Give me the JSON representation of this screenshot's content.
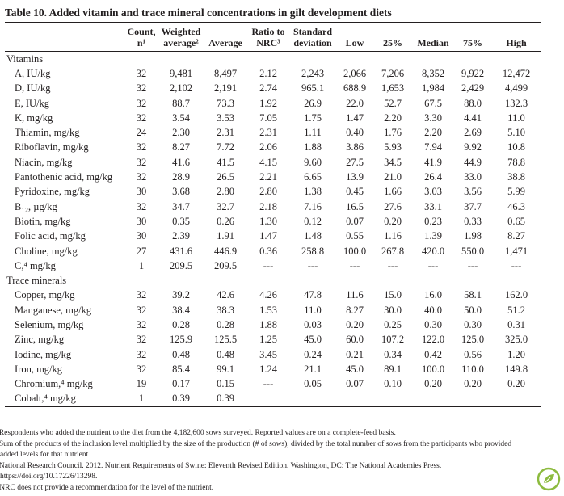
{
  "title": "Table 10. Added vitamin and trace mineral concentrations in gilt development diets",
  "table": {
    "header": [
      [
        ""
      ],
      [
        "Count,",
        "n¹"
      ],
      [
        "Weighted",
        "average²"
      ],
      [
        "Average"
      ],
      [
        "Ratio to",
        "NRC³"
      ],
      [
        "Standard",
        "deviation"
      ],
      [
        "Low"
      ],
      [
        "25%"
      ],
      [
        "Median"
      ],
      [
        "75%"
      ],
      [
        "High"
      ]
    ],
    "sections": [
      {
        "title": "Vitamins",
        "rows": [
          [
            "A, IU/kg",
            "32",
            "9,481",
            "8,497",
            "2.12",
            "2,243",
            "2,066",
            "7,206",
            "8,352",
            "9,922",
            "12,472"
          ],
          [
            "D, IU/kg",
            "32",
            "2,102",
            "2,191",
            "2.74",
            "965.1",
            "688.9",
            "1,653",
            "1,984",
            "2,429",
            "4,499"
          ],
          [
            "E, IU/kg",
            "32",
            "88.7",
            "73.3",
            "1.92",
            "26.9",
            "22.0",
            "52.7",
            "67.5",
            "88.0",
            "132.3"
          ],
          [
            "K, mg/kg",
            "32",
            "3.54",
            "3.53",
            "7.05",
            "1.75",
            "1.47",
            "2.20",
            "3.30",
            "4.41",
            "11.0"
          ],
          [
            "Thiamin, mg/kg",
            "24",
            "2.30",
            "2.31",
            "2.31",
            "1.11",
            "0.40",
            "1.76",
            "2.20",
            "2.69",
            "5.10"
          ],
          [
            "Riboflavin, mg/kg",
            "32",
            "8.27",
            "7.72",
            "2.06",
            "1.88",
            "3.86",
            "5.93",
            "7.94",
            "9.92",
            "10.8"
          ],
          [
            "Niacin, mg/kg",
            "32",
            "41.6",
            "41.5",
            "4.15",
            "9.60",
            "27.5",
            "34.5",
            "41.9",
            "44.9",
            "78.8"
          ],
          [
            "Pantothenic acid, mg/kg",
            "32",
            "28.9",
            "26.5",
            "2.21",
            "6.65",
            "13.9",
            "21.0",
            "26.4",
            "33.0",
            "38.8"
          ],
          [
            "Pyridoxine, mg/kg",
            "30",
            "3.68",
            "2.80",
            "2.80",
            "1.38",
            "0.45",
            "1.66",
            "3.03",
            "3.56",
            "5.99"
          ],
          [
            "B₁₂, µg/kg",
            "32",
            "34.7",
            "32.7",
            "2.18",
            "7.16",
            "16.5",
            "27.6",
            "33.1",
            "37.7",
            "46.3"
          ],
          [
            "Biotin, mg/kg",
            "30",
            "0.35",
            "0.26",
            "1.30",
            "0.12",
            "0.07",
            "0.20",
            "0.23",
            "0.33",
            "0.65"
          ],
          [
            "Folic acid, mg/kg",
            "30",
            "2.39",
            "1.91",
            "1.47",
            "1.48",
            "0.55",
            "1.16",
            "1.39",
            "1.98",
            "8.27"
          ],
          [
            "Choline, mg/kg",
            "27",
            "431.6",
            "446.9",
            "0.36",
            "258.8",
            "100.0",
            "267.8",
            "420.0",
            "550.0",
            "1,471"
          ],
          [
            "C,⁴ mg/kg",
            "1",
            "209.5",
            "209.5",
            "---",
            "---",
            "---",
            "---",
            "---",
            "---",
            "---"
          ]
        ]
      },
      {
        "title": "Trace minerals",
        "rows": [
          [
            "Copper, mg/kg",
            "32",
            "39.2",
            "42.6",
            "4.26",
            "47.8",
            "11.6",
            "15.0",
            "16.0",
            "58.1",
            "162.0"
          ],
          [
            "Manganese, mg/kg",
            "32",
            "38.4",
            "38.3",
            "1.53",
            "11.0",
            "8.27",
            "30.0",
            "40.0",
            "50.0",
            "51.2"
          ],
          [
            "Selenium, mg/kg",
            "32",
            "0.28",
            "0.28",
            "1.88",
            "0.03",
            "0.20",
            "0.25",
            "0.30",
            "0.30",
            "0.31"
          ],
          [
            "Zinc, mg/kg",
            "32",
            "125.9",
            "125.5",
            "1.25",
            "45.0",
            "60.0",
            "107.2",
            "122.0",
            "125.0",
            "325.0"
          ],
          [
            "Iodine, mg/kg",
            "32",
            "0.48",
            "0.48",
            "3.45",
            "0.24",
            "0.21",
            "0.34",
            "0.42",
            "0.56",
            "1.20"
          ],
          [
            "Iron, mg/kg",
            "32",
            "85.4",
            "99.1",
            "1.24",
            "21.1",
            "45.0",
            "89.1",
            "100.0",
            "110.0",
            "149.8"
          ],
          [
            "Chromium,⁴ mg/kg",
            "19",
            "0.17",
            "0.15",
            "---",
            "0.05",
            "0.07",
            "0.10",
            "0.20",
            "0.20",
            "0.20"
          ],
          [
            "Cobalt,⁴ mg/kg",
            "1",
            "0.39",
            "0.39"
          ]
        ]
      }
    ]
  },
  "footnotes": [
    "¹Respondents who added the nutrient to the diet from the 4,182,600 sows surveyed. Reported values are on a complete-feed basis.",
    "²Sum of the products of the inclusion level multiplied by the size of the production (# of sows), divided by the total number of sows from the participants who provided added levels for that nutrient",
    "³National Research Council. 2012. Nutrient Requirements of Swine: Eleventh Revised Edition. Washington, DC: The National Academies Press. https://doi.org/10.17226/13298.",
    "⁴NRC does not provide a recommendation for the level of the nutrient."
  ]
}
